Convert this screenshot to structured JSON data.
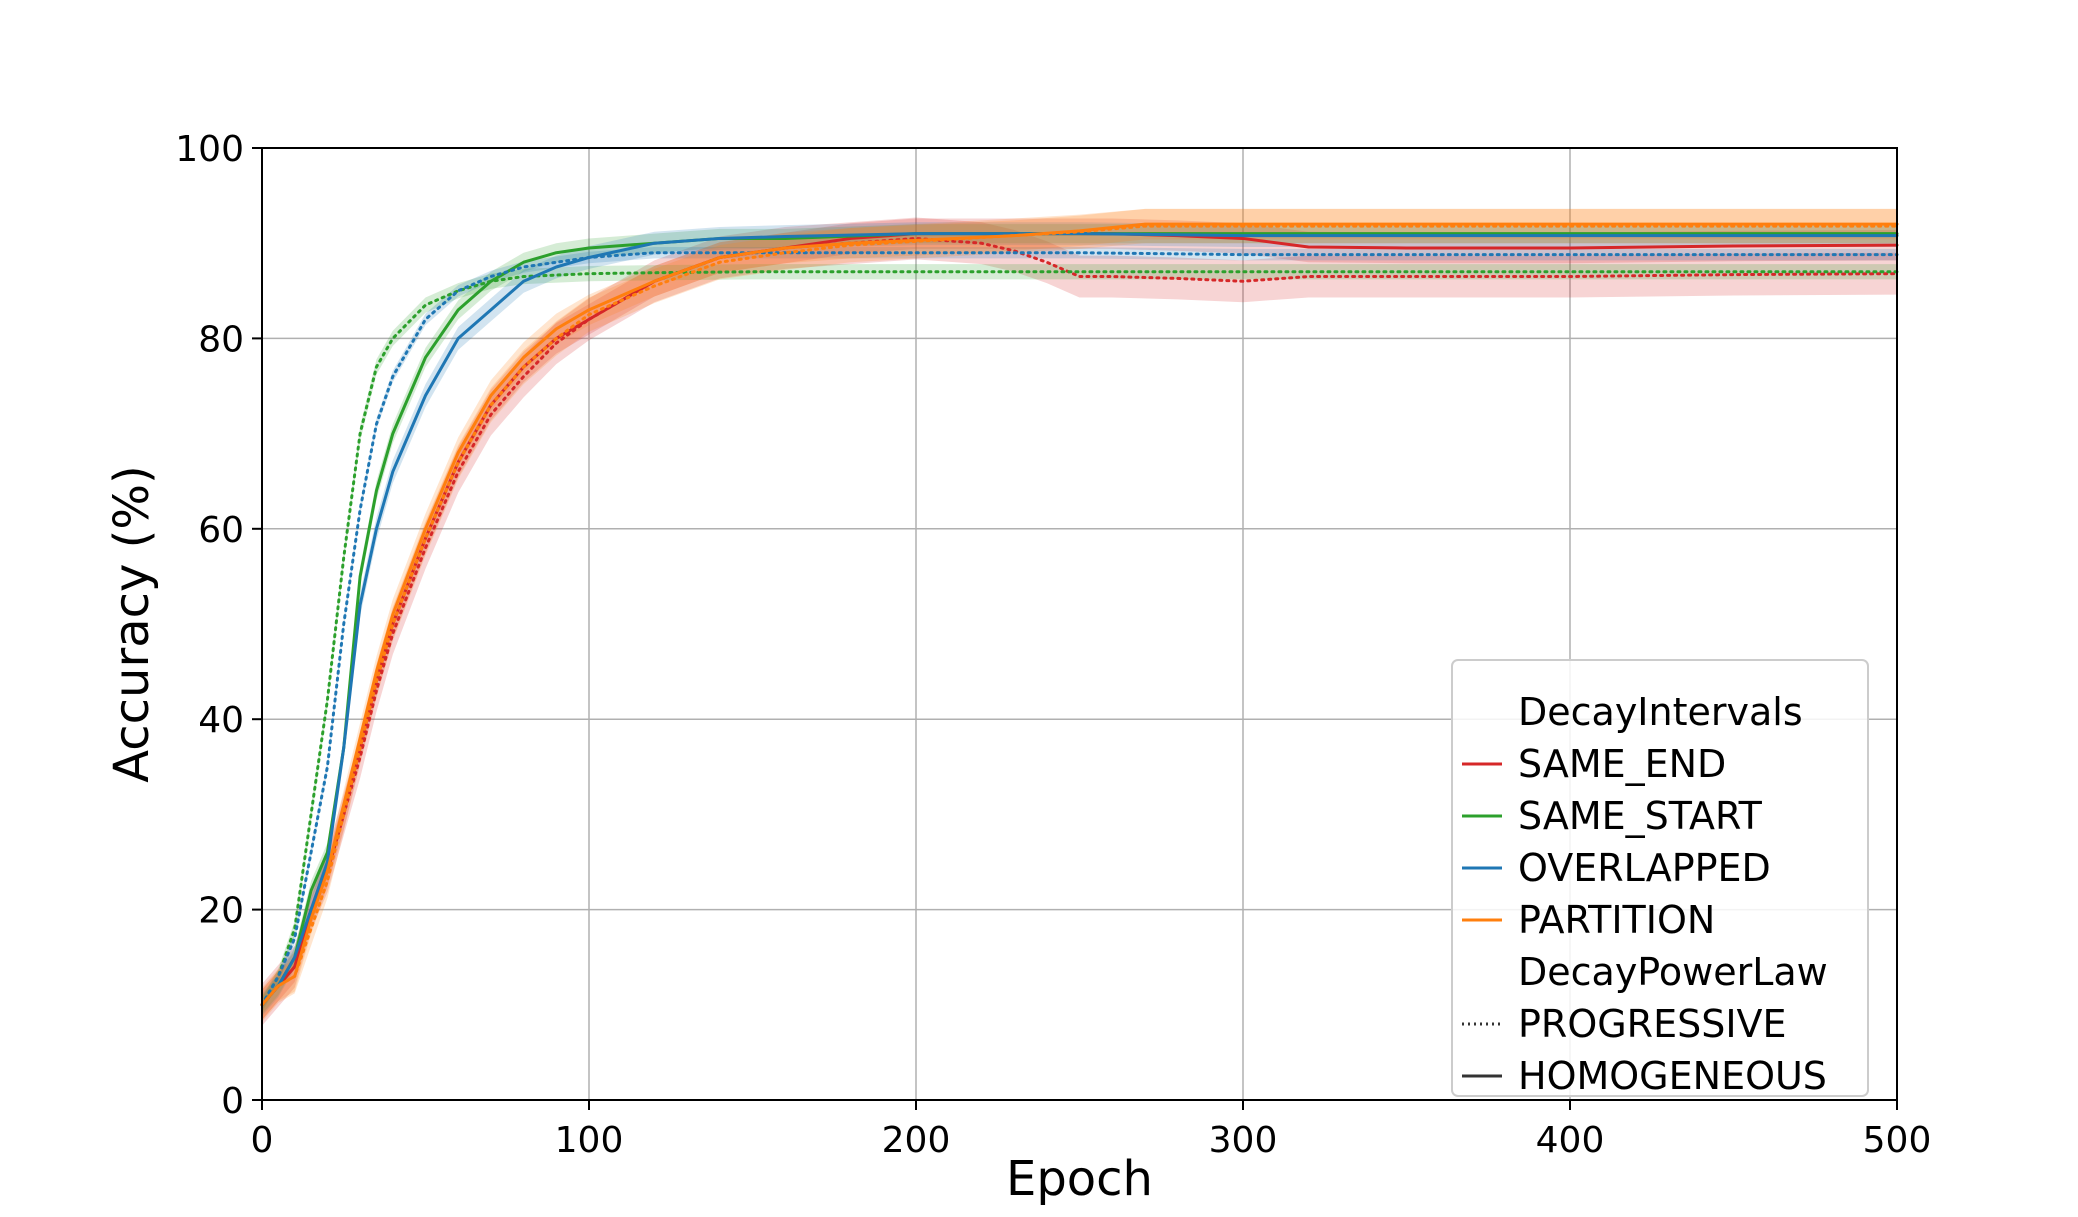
{
  "chart_data": {
    "type": "line",
    "title": "",
    "xlabel": "Epoch",
    "ylabel": "Accuracy (%)",
    "xlim": [
      0,
      500
    ],
    "ylim": [
      0,
      100
    ],
    "xticks": [
      0,
      100,
      200,
      300,
      400,
      500
    ],
    "yticks": [
      0,
      20,
      40,
      60,
      80,
      100
    ],
    "grid": true,
    "legend": {
      "placement": "lower-right",
      "groups": [
        {
          "title": "DecayIntervals",
          "entries": [
            {
              "label": "SAME_END",
              "color": "#d62728",
              "style": "solid"
            },
            {
              "label": "SAME_START",
              "color": "#2ca02c",
              "style": "solid"
            },
            {
              "label": "OVERLAPPED",
              "color": "#1f77b4",
              "style": "solid"
            },
            {
              "label": "PARTITION",
              "color": "#ff7f0e",
              "style": "solid"
            }
          ]
        },
        {
          "title": "DecayPowerLaw",
          "entries": [
            {
              "label": "PROGRESSIVE",
              "color": "#333333",
              "style": "dotted"
            },
            {
              "label": "HOMOGENEOUS",
              "color": "#333333",
              "style": "solid"
            }
          ]
        }
      ]
    },
    "series": [
      {
        "key": "SAME_END|HOMOGENEOUS",
        "color": "#d62728",
        "style": "solid",
        "x": [
          0,
          5,
          10,
          15,
          20,
          25,
          30,
          35,
          40,
          50,
          60,
          70,
          80,
          90,
          100,
          120,
          140,
          160,
          180,
          200,
          220,
          240,
          260,
          280,
          300,
          320,
          350,
          400,
          450,
          500
        ],
        "y": [
          10,
          12,
          14,
          20,
          24,
          30,
          37,
          44,
          50,
          59,
          67,
          73,
          77,
          80,
          82,
          86,
          88.5,
          89.5,
          90.5,
          91,
          91,
          91,
          91,
          90.8,
          90.5,
          89.6,
          89.5,
          89.5,
          89.7,
          89.8
        ],
        "band": 1.6
      },
      {
        "key": "SAME_END|PROGRESSIVE",
        "color": "#d62728",
        "style": "dotted",
        "x": [
          0,
          5,
          10,
          15,
          20,
          25,
          30,
          35,
          40,
          50,
          60,
          70,
          80,
          90,
          100,
          120,
          140,
          160,
          180,
          200,
          220,
          230,
          240,
          250,
          260,
          280,
          300,
          320,
          350,
          400,
          450,
          500
        ],
        "y": [
          10,
          12,
          14,
          20,
          24,
          30,
          36,
          43,
          49,
          58,
          66,
          72,
          76,
          79.5,
          82,
          86,
          88.5,
          89.5,
          90,
          90.5,
          90,
          89.2,
          88,
          86.5,
          86.5,
          86.3,
          86,
          86.5,
          86.5,
          86.5,
          86.7,
          86.8
        ],
        "band": 2.2
      },
      {
        "key": "SAME_START|HOMOGENEOUS",
        "color": "#2ca02c",
        "style": "solid",
        "x": [
          0,
          5,
          10,
          15,
          20,
          25,
          30,
          35,
          40,
          50,
          60,
          70,
          80,
          90,
          100,
          120,
          140,
          160,
          200,
          250,
          300,
          350,
          400,
          450,
          500
        ],
        "y": [
          10,
          12,
          15,
          22,
          26,
          37,
          55,
          64,
          70,
          78,
          83,
          86,
          88,
          89,
          89.5,
          90,
          90.5,
          90.5,
          91,
          91,
          91,
          91,
          91,
          91,
          91
        ],
        "band": 1.0
      },
      {
        "key": "SAME_START|PROGRESSIVE",
        "color": "#2ca02c",
        "style": "dotted",
        "x": [
          0,
          5,
          10,
          15,
          20,
          25,
          30,
          35,
          40,
          50,
          60,
          70,
          80,
          100,
          120,
          150,
          200,
          250,
          300,
          350,
          400,
          450,
          500
        ],
        "y": [
          10,
          13,
          18,
          30,
          42,
          57,
          70,
          77,
          80,
          83.5,
          85,
          86,
          86.5,
          86.8,
          86.9,
          87,
          87,
          87,
          87,
          87,
          87,
          87,
          87
        ],
        "band": 0.8
      },
      {
        "key": "OVERLAPPED|HOMOGENEOUS",
        "color": "#1f77b4",
        "style": "solid",
        "x": [
          0,
          5,
          10,
          15,
          20,
          25,
          30,
          35,
          40,
          50,
          60,
          70,
          80,
          90,
          100,
          120,
          140,
          160,
          200,
          250,
          300,
          350,
          400,
          450,
          500
        ],
        "y": [
          10,
          12,
          15,
          20,
          25,
          37,
          52,
          60,
          66,
          74,
          80,
          83,
          86,
          87.5,
          88.5,
          90,
          90.5,
          90.7,
          91,
          91,
          90.8,
          90.8,
          90.8,
          90.8,
          90.8
        ],
        "band": 1.2
      },
      {
        "key": "OVERLAPPED|PROGRESSIVE",
        "color": "#1f77b4",
        "style": "dotted",
        "x": [
          0,
          5,
          10,
          15,
          20,
          25,
          30,
          35,
          40,
          50,
          60,
          70,
          80,
          90,
          100,
          120,
          140,
          160,
          200,
          250,
          300,
          350,
          400,
          450,
          500
        ],
        "y": [
          10,
          13,
          17,
          26,
          35,
          50,
          62,
          71,
          76,
          82,
          85,
          86.5,
          87.5,
          88,
          88.5,
          89,
          89,
          89,
          89,
          89,
          88.8,
          88.8,
          88.8,
          88.8,
          88.8
        ],
        "band": 0.6
      },
      {
        "key": "PARTITION|HOMOGENEOUS",
        "color": "#ff7f0e",
        "style": "solid",
        "x": [
          0,
          5,
          10,
          15,
          20,
          25,
          30,
          35,
          40,
          50,
          60,
          70,
          80,
          90,
          100,
          120,
          140,
          160,
          180,
          200,
          230,
          250,
          270,
          300,
          350,
          400,
          450,
          500
        ],
        "y": [
          10,
          12,
          13,
          19,
          24,
          31,
          38,
          45,
          51,
          60,
          68,
          74,
          78,
          81,
          83,
          86,
          88.5,
          89.5,
          90,
          90.3,
          90.8,
          91.3,
          92,
          92,
          92,
          92,
          92,
          92
        ],
        "band": 1.6
      },
      {
        "key": "PARTITION|PROGRESSIVE",
        "color": "#ff7f0e",
        "style": "dotted",
        "x": [
          0,
          5,
          10,
          15,
          20,
          25,
          30,
          35,
          40,
          50,
          60,
          70,
          80,
          90,
          100,
          120,
          140,
          160,
          180,
          200,
          230,
          250,
          270,
          300,
          350,
          400,
          450,
          500
        ],
        "y": [
          10,
          12,
          13,
          18,
          23,
          30,
          37,
          44,
          50,
          59,
          67,
          73,
          77,
          80,
          82.5,
          85.5,
          88,
          89,
          89.8,
          90.2,
          90.8,
          91.2,
          91.8,
          91.8,
          91.8,
          91.8,
          91.8,
          91.8
        ],
        "band": 1.8
      }
    ]
  }
}
